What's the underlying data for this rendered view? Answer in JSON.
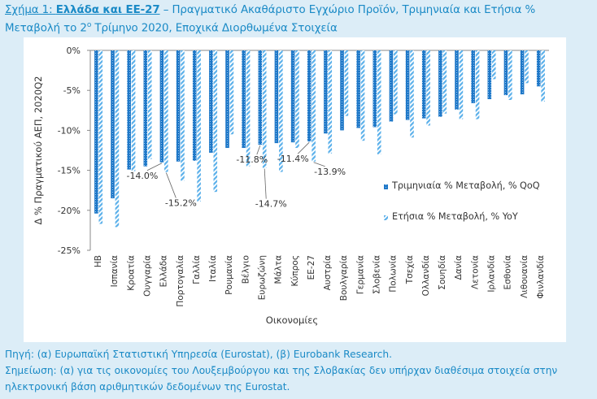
{
  "header": {
    "figure_label": "Σχήμα 1:",
    "bold_part": "Ελλάδα και ΕΕ-27",
    "rest": " – Πραγματικό Ακαθάριστο Εγχώριο Προϊόν, Τριμηνιαία και Ετήσια % Μεταβολή το 2",
    "sup": "ο",
    "rest2": " Τρίμηνο 2020, Εποχικά Διορθωμένα Στοιχεία"
  },
  "footer": {
    "source": "Πηγή: (α) Ευρωπαϊκή Στατιστική Υπηρεσία (Eurostat), (β) Eurobank Research.",
    "note_line1": "Σημείωση: (α) για τις οικονομίες του Λουξεμβούργου και της Σλοβακίας δεν υπήρχαν διαθέσιμα στοιχεία στην",
    "note_line2": "ηλεκτρονική βάση αριθμητικών δεδομένων της Eurostat."
  },
  "colors": {
    "qoq": "#1f78c8",
    "yoy": "#5bb0ea",
    "axis": "#8a8a8a",
    "text": "#333333"
  },
  "chart_data": {
    "type": "bar",
    "xlabel": "Οικονομίες",
    "ylabel": "Δ % Πραγματικού ΑΕΠ, 2020Q2",
    "ylim": [
      -25,
      0
    ],
    "yticks": [
      0,
      -5,
      -10,
      -15,
      -20,
      -25
    ],
    "ytick_labels": [
      "0%",
      "-5%",
      "-10%",
      "-15%",
      "-20%",
      "-25%"
    ],
    "legend_position": "right",
    "categories": [
      "ΗΒ",
      "Ισπανία",
      "Κροατία",
      "Ουγγαρία",
      "Ελλάδα",
      "Πορτογαλία",
      "Γαλλία",
      "Ιταλία",
      "Ρουμανία",
      "Βέλγιο",
      "Ευρωζώνη",
      "Μάλτα",
      "Κύπρος",
      "ΕΕ-27",
      "Αυστρία",
      "Βουλγαρία",
      "Γερμανία",
      "Σλοβενία",
      "Πολωνία",
      "Τσεχία",
      "Ολλανδία",
      "Σουηδία",
      "Δανία",
      "Λετονία",
      "Ιρλανδία",
      "Εσθονία",
      "Λιθουανία",
      "Φινλανδία"
    ],
    "series": [
      {
        "name": "Τριμηνιαία % Μεταβολή, % QoQ",
        "values": [
          -20.4,
          -18.5,
          -14.9,
          -14.5,
          -14.0,
          -13.9,
          -13.8,
          -12.8,
          -12.2,
          -12.2,
          -11.8,
          -11.6,
          -11.5,
          -11.4,
          -10.4,
          -10.0,
          -9.7,
          -9.6,
          -8.9,
          -8.7,
          -8.5,
          -8.3,
          -7.4,
          -6.6,
          -6.1,
          -5.6,
          -5.5,
          -4.5
        ]
      },
      {
        "name": "Ετήσια % Μεταβολή, % YoY",
        "values": [
          -21.7,
          -22.1,
          -15.1,
          -13.6,
          -15.2,
          -16.3,
          -18.9,
          -17.7,
          -10.5,
          -14.5,
          -14.7,
          -15.2,
          -12.2,
          -13.9,
          -12.9,
          -8.2,
          -11.3,
          -13.0,
          -8.0,
          -10.9,
          -9.4,
          -7.9,
          -8.6,
          -8.6,
          -3.6,
          -6.2,
          -4.1,
          -6.4
        ]
      }
    ],
    "annotations": [
      {
        "text": "-14.0%",
        "category": "Ελλάδα",
        "series": 0
      },
      {
        "text": "-15.2%",
        "category": "Ελλάδα",
        "series": 1
      },
      {
        "text": "-11.8%",
        "category": "Ευρωζώνη",
        "series": 0
      },
      {
        "text": "-14.7%",
        "category": "Ευρωζώνη",
        "series": 1
      },
      {
        "text": "-11.4%",
        "category": "ΕΕ-27",
        "series": 0
      },
      {
        "text": "-13.9%",
        "category": "ΕΕ-27",
        "series": 1
      }
    ]
  }
}
